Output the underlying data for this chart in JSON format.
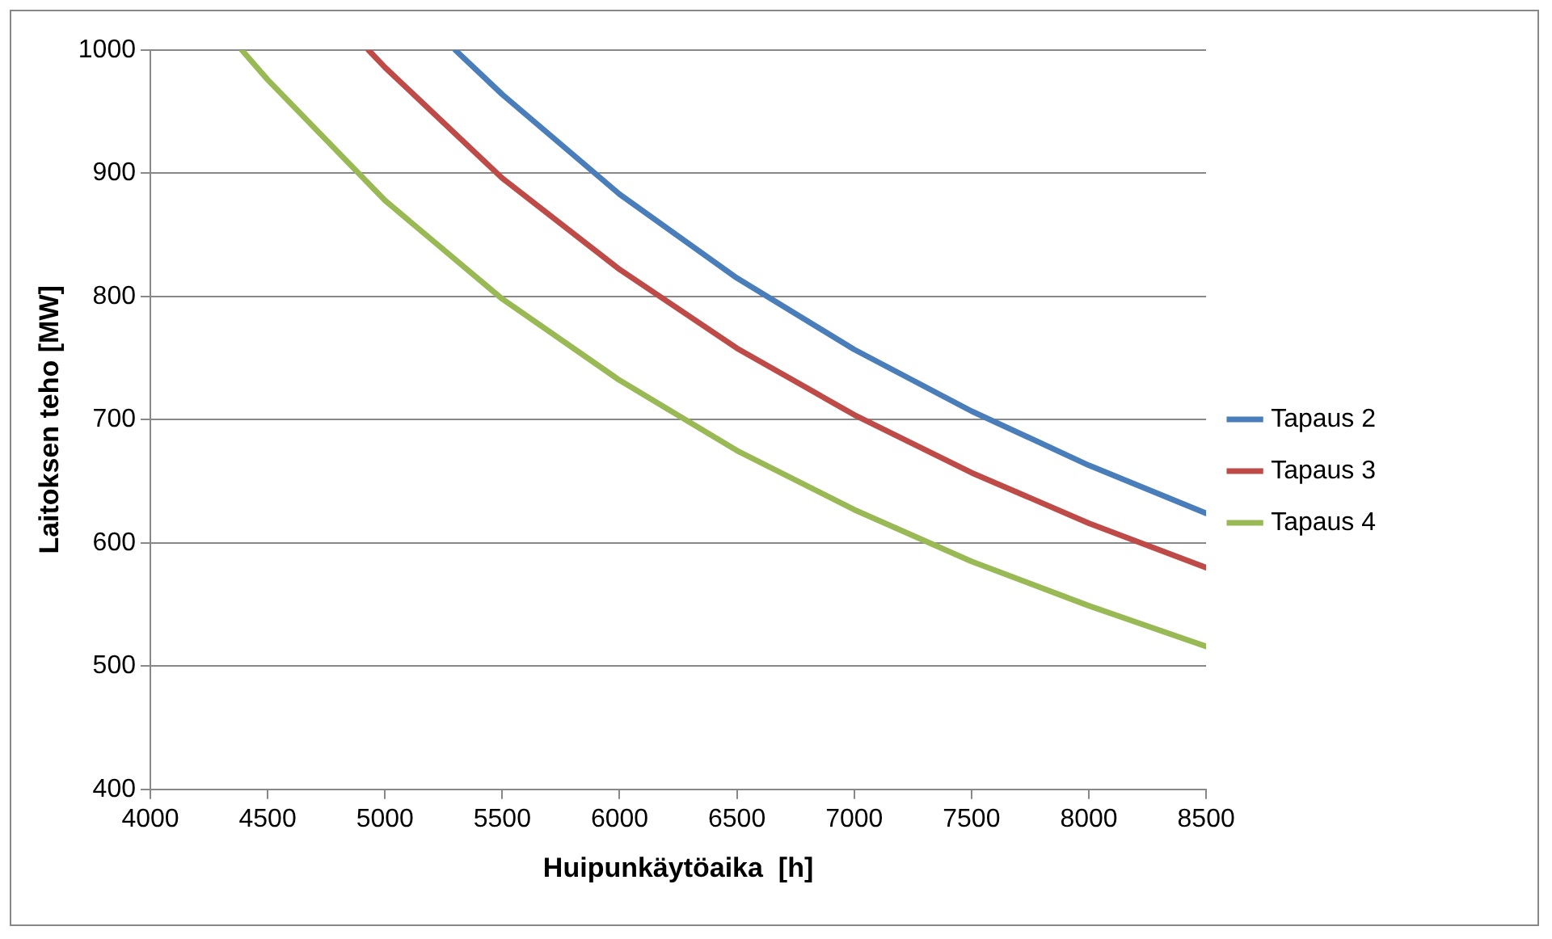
{
  "chart_data": {
    "type": "line",
    "xlabel": "Huipunkäytöaika  [h]",
    "ylabel": "Laitoksen teho [MW]",
    "xlim": [
      4000,
      8500
    ],
    "xticks": [
      4000,
      4500,
      5000,
      5500,
      6000,
      6500,
      7000,
      7500,
      8000,
      8500
    ],
    "ylim": [
      400,
      1000
    ],
    "yticks": [
      400,
      500,
      600,
      700,
      800,
      900,
      1000
    ],
    "grid": "y",
    "legend": "right",
    "marker": "none",
    "series": [
      {
        "name": "Tapaus 2",
        "color": "#4a7ebb",
        "x": [
          5300,
          5500,
          6000,
          6500,
          7000,
          7500,
          8000,
          8500
        ],
        "values": [
          1000,
          964,
          883,
          815,
          757,
          707,
          663,
          624
        ]
      },
      {
        "name": "Tapaus 3",
        "color": "#be4b48",
        "x": [
          4930,
          5000,
          5500,
          6000,
          6500,
          7000,
          7500,
          8000,
          8500
        ],
        "values": [
          1000,
          986,
          896,
          822,
          758,
          704,
          657,
          616,
          580
        ]
      },
      {
        "name": "Tapaus 4",
        "color": "#98b954",
        "x": [
          4390,
          4500,
          5000,
          5500,
          6000,
          6500,
          7000,
          7500,
          8000,
          8500
        ],
        "values": [
          1000,
          976,
          878,
          798,
          732,
          675,
          627,
          585,
          549,
          516
        ]
      }
    ]
  }
}
